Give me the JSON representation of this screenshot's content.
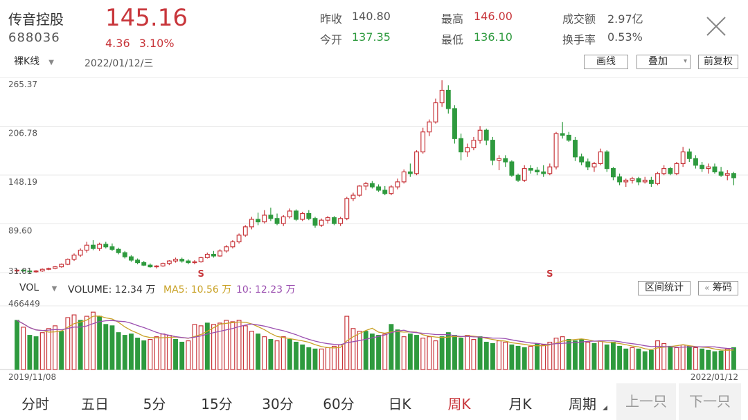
{
  "header": {
    "name": "传音控股",
    "code": "688036",
    "price": "145.16",
    "change": "4.36",
    "change_pct": "3.10%",
    "stats": [
      {
        "label": "昨收",
        "value": "140.80",
        "color": "#555555"
      },
      {
        "label": "最高",
        "value": "146.00",
        "color": "#c8363b"
      },
      {
        "label": "成交额",
        "value": "2.97亿",
        "color": "#555555"
      },
      {
        "label": "今开",
        "value": "137.35",
        "color": "#2e9a3e"
      },
      {
        "label": "最低",
        "value": "136.10",
        "color": "#2e9a3e"
      },
      {
        "label": "换手率",
        "value": "0.53%",
        "color": "#555555"
      }
    ]
  },
  "controls": {
    "kline_mode": "裸K线",
    "date": "2022/01/12/三",
    "draw_line": "画线",
    "overlay": "叠加",
    "adjust": "前复权"
  },
  "volume_bar": {
    "vol_label": "VOL",
    "volume": "VOLUME: 12.34 万",
    "ma5": "MA5: 10.56 万",
    "ma10": "10: 12.23 万",
    "range_stats": "区间统计",
    "chips": "筹码",
    "ma5_color": "#c9a227",
    "ma10_color": "#9b4fb0"
  },
  "chart_data": {
    "type": "candlestick",
    "price_ticks": [
      "265.37",
      "206.78",
      "148.19",
      "89.60",
      "31.01"
    ],
    "ylim": [
      31.01,
      265.37
    ],
    "vol_max_label": "466449",
    "vol_max": 466449,
    "x_start": "2019/11/08",
    "x_end": "2022/01/12",
    "markers": [
      {
        "index": 29,
        "label": "S"
      },
      {
        "index": 84,
        "label": "S"
      }
    ],
    "colors": {
      "up": "#c8363b",
      "down": "#2e9a3e"
    },
    "candles": [
      [
        33,
        35,
        31,
        34
      ],
      [
        34,
        35,
        32,
        33
      ],
      [
        33,
        34,
        31,
        32
      ],
      [
        32,
        34,
        31,
        33
      ],
      [
        33,
        36,
        32,
        35
      ],
      [
        35,
        37,
        34,
        36
      ],
      [
        36,
        39,
        35,
        38
      ],
      [
        38,
        42,
        37,
        41
      ],
      [
        41,
        48,
        40,
        47
      ],
      [
        47,
        54,
        45,
        52
      ],
      [
        52,
        60,
        50,
        58
      ],
      [
        58,
        68,
        55,
        64
      ],
      [
        64,
        70,
        58,
        60
      ],
      [
        60,
        67,
        57,
        65
      ],
      [
        65,
        68,
        60,
        62
      ],
      [
        62,
        66,
        57,
        59
      ],
      [
        59,
        61,
        53,
        55
      ],
      [
        55,
        57,
        48,
        50
      ],
      [
        50,
        52,
        44,
        46
      ],
      [
        46,
        48,
        41,
        43
      ],
      [
        43,
        45,
        39,
        40
      ],
      [
        40,
        42,
        37,
        38
      ],
      [
        38,
        40,
        36,
        39
      ],
      [
        39,
        43,
        38,
        42
      ],
      [
        42,
        46,
        40,
        45
      ],
      [
        45,
        49,
        43,
        47
      ],
      [
        47,
        49,
        43,
        45
      ],
      [
        45,
        47,
        41,
        43
      ],
      [
        43,
        46,
        41,
        44
      ],
      [
        44,
        50,
        43,
        49
      ],
      [
        49,
        55,
        48,
        53
      ],
      [
        53,
        57,
        49,
        51
      ],
      [
        51,
        59,
        50,
        57
      ],
      [
        57,
        64,
        55,
        62
      ],
      [
        62,
        70,
        60,
        68
      ],
      [
        68,
        78,
        66,
        76
      ],
      [
        76,
        88,
        74,
        86
      ],
      [
        86,
        98,
        83,
        95
      ],
      [
        95,
        103,
        88,
        92
      ],
      [
        92,
        106,
        90,
        100
      ],
      [
        100,
        109,
        93,
        96
      ],
      [
        96,
        102,
        88,
        90
      ],
      [
        90,
        100,
        87,
        98
      ],
      [
        98,
        108,
        96,
        105
      ],
      [
        105,
        107,
        93,
        95
      ],
      [
        95,
        104,
        93,
        102
      ],
      [
        102,
        106,
        94,
        96
      ],
      [
        96,
        98,
        85,
        88
      ],
      [
        88,
        96,
        86,
        94
      ],
      [
        94,
        99,
        90,
        97
      ],
      [
        97,
        99,
        88,
        90
      ],
      [
        90,
        98,
        87,
        96
      ],
      [
        96,
        122,
        94,
        120
      ],
      [
        120,
        127,
        117,
        124
      ],
      [
        124,
        136,
        122,
        135
      ],
      [
        135,
        140,
        130,
        138
      ],
      [
        138,
        141,
        132,
        134
      ],
      [
        134,
        137,
        128,
        130
      ],
      [
        130,
        135,
        124,
        126
      ],
      [
        126,
        136,
        124,
        134
      ],
      [
        134,
        144,
        131,
        140
      ],
      [
        140,
        155,
        138,
        152
      ],
      [
        152,
        162,
        146,
        150
      ],
      [
        150,
        178,
        148,
        176
      ],
      [
        176,
        205,
        174,
        200
      ],
      [
        200,
        215,
        195,
        212
      ],
      [
        212,
        240,
        210,
        235
      ],
      [
        235,
        262,
        230,
        250
      ],
      [
        250,
        256,
        222,
        228
      ],
      [
        228,
        232,
        186,
        192
      ],
      [
        192,
        198,
        166,
        176
      ],
      [
        176,
        186,
        170,
        181
      ],
      [
        181,
        194,
        178,
        190
      ],
      [
        190,
        207,
        186,
        202
      ],
      [
        202,
        204,
        184,
        190
      ],
      [
        190,
        194,
        160,
        166
      ],
      [
        166,
        172,
        154,
        168
      ],
      [
        168,
        172,
        158,
        164
      ],
      [
        164,
        166,
        146,
        148
      ],
      [
        148,
        150,
        140,
        142
      ],
      [
        142,
        160,
        140,
        156
      ],
      [
        156,
        160,
        150,
        154
      ],
      [
        154,
        158,
        148,
        152
      ],
      [
        152,
        160,
        146,
        150
      ],
      [
        150,
        162,
        148,
        158
      ],
      [
        158,
        200,
        155,
        198
      ],
      [
        198,
        212,
        192,
        196
      ],
      [
        196,
        200,
        188,
        190
      ],
      [
        190,
        194,
        165,
        170
      ],
      [
        170,
        174,
        160,
        164
      ],
      [
        164,
        168,
        154,
        158
      ],
      [
        158,
        164,
        152,
        162
      ],
      [
        162,
        180,
        160,
        176
      ],
      [
        176,
        178,
        152,
        156
      ],
      [
        156,
        158,
        142,
        146
      ],
      [
        146,
        150,
        136,
        140
      ],
      [
        140,
        144,
        134,
        142
      ],
      [
        142,
        146,
        138,
        144
      ],
      [
        144,
        146,
        136,
        140
      ],
      [
        140,
        146,
        138,
        142
      ],
      [
        142,
        146,
        134,
        138
      ],
      [
        138,
        152,
        136,
        150
      ],
      [
        150,
        160,
        148,
        156
      ],
      [
        156,
        158,
        148,
        150
      ],
      [
        150,
        164,
        148,
        162
      ],
      [
        162,
        182,
        158,
        176
      ],
      [
        176,
        180,
        164,
        168
      ],
      [
        168,
        172,
        156,
        160
      ],
      [
        160,
        164,
        152,
        156
      ],
      [
        156,
        162,
        150,
        158
      ],
      [
        158,
        162,
        150,
        152
      ],
      [
        152,
        158,
        146,
        148
      ],
      [
        148,
        154,
        142,
        150
      ],
      [
        150,
        152,
        136,
        145
      ]
    ],
    "volumes": [
      [
        360000,
        -1
      ],
      [
        310000,
        1
      ],
      [
        250000,
        -1
      ],
      [
        240000,
        -1
      ],
      [
        270000,
        1
      ],
      [
        300000,
        1
      ],
      [
        320000,
        1
      ],
      [
        280000,
        -1
      ],
      [
        380000,
        1
      ],
      [
        400000,
        1
      ],
      [
        360000,
        -1
      ],
      [
        390000,
        1
      ],
      [
        420000,
        1
      ],
      [
        390000,
        -1
      ],
      [
        330000,
        -1
      ],
      [
        320000,
        -1
      ],
      [
        270000,
        -1
      ],
      [
        250000,
        -1
      ],
      [
        260000,
        -1
      ],
      [
        230000,
        -1
      ],
      [
        210000,
        -1
      ],
      [
        220000,
        1
      ],
      [
        240000,
        1
      ],
      [
        260000,
        1
      ],
      [
        250000,
        1
      ],
      [
        220000,
        -1
      ],
      [
        200000,
        -1
      ],
      [
        210000,
        1
      ],
      [
        330000,
        1
      ],
      [
        320000,
        1
      ],
      [
        340000,
        -1
      ],
      [
        330000,
        1
      ],
      [
        340000,
        1
      ],
      [
        360000,
        1
      ],
      [
        350000,
        1
      ],
      [
        360000,
        1
      ],
      [
        320000,
        1
      ],
      [
        280000,
        1
      ],
      [
        260000,
        -1
      ],
      [
        240000,
        1
      ],
      [
        220000,
        -1
      ],
      [
        210000,
        1
      ],
      [
        240000,
        1
      ],
      [
        220000,
        -1
      ],
      [
        200000,
        -1
      ],
      [
        180000,
        -1
      ],
      [
        160000,
        -1
      ],
      [
        150000,
        -1
      ],
      [
        150000,
        1
      ],
      [
        160000,
        1
      ],
      [
        170000,
        1
      ],
      [
        180000,
        1
      ],
      [
        390000,
        1
      ],
      [
        300000,
        1
      ],
      [
        280000,
        1
      ],
      [
        280000,
        -1
      ],
      [
        260000,
        -1
      ],
      [
        250000,
        -1
      ],
      [
        260000,
        1
      ],
      [
        330000,
        -1
      ],
      [
        290000,
        -1
      ],
      [
        240000,
        1
      ],
      [
        260000,
        -1
      ],
      [
        250000,
        -1
      ],
      [
        230000,
        1
      ],
      [
        240000,
        1
      ],
      [
        210000,
        1
      ],
      [
        240000,
        -1
      ],
      [
        270000,
        -1
      ],
      [
        250000,
        -1
      ],
      [
        230000,
        -1
      ],
      [
        250000,
        1
      ],
      [
        220000,
        1
      ],
      [
        240000,
        -1
      ],
      [
        200000,
        -1
      ],
      [
        190000,
        -1
      ],
      [
        210000,
        1
      ],
      [
        200000,
        1
      ],
      [
        180000,
        -1
      ],
      [
        170000,
        -1
      ],
      [
        160000,
        -1
      ],
      [
        170000,
        1
      ],
      [
        190000,
        -1
      ],
      [
        180000,
        1
      ],
      [
        200000,
        1
      ],
      [
        230000,
        1
      ],
      [
        240000,
        1
      ],
      [
        220000,
        -1
      ],
      [
        210000,
        -1
      ],
      [
        220000,
        -1
      ],
      [
        200000,
        1
      ],
      [
        190000,
        -1
      ],
      [
        210000,
        1
      ],
      [
        180000,
        -1
      ],
      [
        200000,
        -1
      ],
      [
        170000,
        -1
      ],
      [
        150000,
        -1
      ],
      [
        160000,
        1
      ],
      [
        150000,
        -1
      ],
      [
        130000,
        -1
      ],
      [
        140000,
        -1
      ],
      [
        210000,
        1
      ],
      [
        190000,
        1
      ],
      [
        170000,
        -1
      ],
      [
        160000,
        1
      ],
      [
        180000,
        1
      ],
      [
        170000,
        -1
      ],
      [
        160000,
        1
      ],
      [
        150000,
        -1
      ],
      [
        140000,
        -1
      ],
      [
        130000,
        -1
      ],
      [
        135000,
        -1
      ],
      [
        150000,
        1
      ],
      [
        160000,
        -1
      ]
    ]
  },
  "tabs": [
    {
      "label": "分时",
      "active": false
    },
    {
      "label": "五日",
      "active": false
    },
    {
      "label": "5分",
      "active": false
    },
    {
      "label": "15分",
      "active": false
    },
    {
      "label": "30分",
      "active": false
    },
    {
      "label": "60分",
      "active": false
    },
    {
      "label": "日K",
      "active": false
    },
    {
      "label": "周K",
      "active": true
    },
    {
      "label": "月K",
      "active": false
    },
    {
      "label": "周期",
      "active": false
    }
  ],
  "nav": {
    "prev": "上一只",
    "next": "下一只"
  }
}
